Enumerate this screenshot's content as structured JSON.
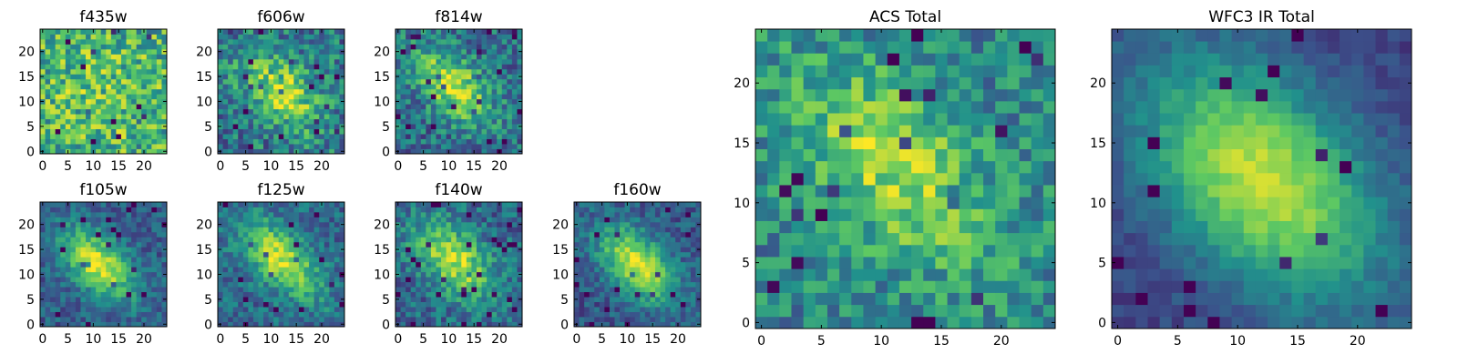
{
  "chart_data": [
    {
      "type": "heatmap",
      "title": "f435w",
      "grid_size": 25,
      "colormap": "viridis",
      "x_ticks": [
        "0",
        "5",
        "10",
        "15",
        "20"
      ],
      "y_ticks": [
        "0",
        "5",
        "10",
        "15",
        "20"
      ],
      "xlim": [
        -0.5,
        24.5
      ],
      "ylim": [
        -0.5,
        24.5
      ],
      "center": [
        12,
        12
      ],
      "spread": 9,
      "angle_deg": -45,
      "elongation": 1.2,
      "peak": 0.72,
      "background": 0.62,
      "noise": 0.28,
      "seed": 11
    },
    {
      "type": "heatmap",
      "title": "f606w",
      "grid_size": 25,
      "colormap": "viridis",
      "x_ticks": [
        "0",
        "5",
        "10",
        "15",
        "20"
      ],
      "y_ticks": [
        "0",
        "5",
        "10",
        "15",
        "20"
      ],
      "xlim": [
        -0.5,
        24.5
      ],
      "ylim": [
        -0.5,
        24.5
      ],
      "center": [
        12,
        12
      ],
      "spread": 5,
      "angle_deg": -45,
      "elongation": 1.7,
      "peak": 0.9,
      "background": 0.4,
      "noise": 0.24,
      "seed": 23
    },
    {
      "type": "heatmap",
      "title": "f814w",
      "grid_size": 25,
      "colormap": "viridis",
      "x_ticks": [
        "0",
        "5",
        "10",
        "15",
        "20"
      ],
      "y_ticks": [
        "0",
        "5",
        "10",
        "15",
        "20"
      ],
      "xlim": [
        -0.5,
        24.5
      ],
      "ylim": [
        -0.5,
        24.5
      ],
      "center": [
        11,
        13
      ],
      "spread": 4.8,
      "angle_deg": -45,
      "elongation": 1.8,
      "peak": 0.92,
      "background": 0.36,
      "noise": 0.22,
      "seed": 37
    },
    {
      "type": "heatmap",
      "title": "f105w",
      "grid_size": 25,
      "colormap": "viridis",
      "x_ticks": [
        "0",
        "5",
        "10",
        "15",
        "20"
      ],
      "y_ticks": [
        "0",
        "5",
        "10",
        "15",
        "20"
      ],
      "xlim": [
        -0.5,
        24.5
      ],
      "ylim": [
        -0.5,
        24.5
      ],
      "center": [
        11,
        12
      ],
      "spread": 4.5,
      "angle_deg": -45,
      "elongation": 1.8,
      "peak": 0.95,
      "background": 0.3,
      "noise": 0.14,
      "seed": 41
    },
    {
      "type": "heatmap",
      "title": "f125w",
      "grid_size": 25,
      "colormap": "viridis",
      "x_ticks": [
        "0",
        "5",
        "10",
        "15",
        "20"
      ],
      "y_ticks": [
        "0",
        "5",
        "10",
        "15",
        "20"
      ],
      "xlim": [
        -0.5,
        24.5
      ],
      "ylim": [
        -0.5,
        24.5
      ],
      "center": [
        12,
        13
      ],
      "spread": 4.8,
      "angle_deg": -45,
      "elongation": 2.0,
      "peak": 0.92,
      "background": 0.34,
      "noise": 0.16,
      "seed": 53
    },
    {
      "type": "heatmap",
      "title": "f140w",
      "grid_size": 25,
      "colormap": "viridis",
      "x_ticks": [
        "0",
        "5",
        "10",
        "15",
        "20"
      ],
      "y_ticks": [
        "0",
        "5",
        "10",
        "15",
        "20"
      ],
      "xlim": [
        -0.5,
        24.5
      ],
      "ylim": [
        -0.5,
        24.5
      ],
      "center": [
        11,
        13
      ],
      "spread": 5,
      "angle_deg": -45,
      "elongation": 1.8,
      "peak": 0.9,
      "background": 0.34,
      "noise": 0.18,
      "seed": 67
    },
    {
      "type": "heatmap",
      "title": "f160w",
      "grid_size": 25,
      "colormap": "viridis",
      "x_ticks": [
        "0",
        "5",
        "10",
        "15",
        "20"
      ],
      "y_ticks": [
        "0",
        "5",
        "10",
        "15",
        "20"
      ],
      "xlim": [
        -0.5,
        24.5
      ],
      "ylim": [
        -0.5,
        24.5
      ],
      "center": [
        12,
        12
      ],
      "spread": 4.8,
      "angle_deg": -45,
      "elongation": 1.8,
      "peak": 0.95,
      "background": 0.28,
      "noise": 0.14,
      "seed": 79
    },
    {
      "type": "heatmap",
      "title": "ACS Total",
      "grid_size": 25,
      "colormap": "viridis",
      "x_ticks": [
        "0",
        "5",
        "10",
        "15",
        "20"
      ],
      "y_ticks": [
        "0",
        "5",
        "10",
        "15",
        "20"
      ],
      "xlim": [
        -0.5,
        24.5
      ],
      "ylim": [
        -0.5,
        24.5
      ],
      "center": [
        11,
        13
      ],
      "spread": 5.5,
      "angle_deg": -45,
      "elongation": 1.8,
      "peak": 0.85,
      "background": 0.45,
      "noise": 0.2,
      "seed": 97
    },
    {
      "type": "heatmap",
      "title": "WFC3 IR Total",
      "grid_size": 25,
      "colormap": "viridis",
      "x_ticks": [
        "0",
        "5",
        "10",
        "15",
        "20"
      ],
      "y_ticks": [
        "0",
        "5",
        "10",
        "15",
        "20"
      ],
      "xlim": [
        -0.5,
        24.5
      ],
      "ylim": [
        -0.5,
        24.5
      ],
      "center": [
        12,
        12
      ],
      "spread": 6.5,
      "angle_deg": -45,
      "elongation": 1.6,
      "peak": 0.92,
      "background": 0.2,
      "noise": 0.07,
      "seed": 113
    }
  ],
  "colors": {
    "viridis_stops": [
      "#440154",
      "#3b528b",
      "#21918c",
      "#5ec962",
      "#fde725"
    ],
    "axes_frame": "#000000",
    "background": "#ffffff"
  }
}
